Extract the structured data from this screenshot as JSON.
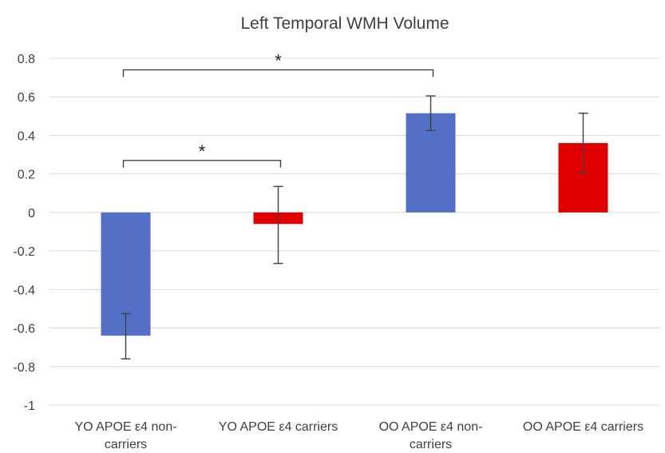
{
  "chart_data": {
    "type": "bar",
    "title": "Left Temporal WMH Volume",
    "xlabel": "",
    "ylabel": "",
    "ylim": [
      -1,
      0.8
    ],
    "yticks": [
      0.8,
      0.6,
      0.4,
      0.2,
      0,
      -0.2,
      -0.4,
      -0.6,
      -0.8,
      -1
    ],
    "ytick_labels": [
      "0.8",
      "0.6",
      "0.4",
      "0.2",
      "0",
      "-0.2",
      "-0.4",
      "-0.6",
      "-0.8",
      "-1"
    ],
    "grid": true,
    "categories": [
      [
        "YO APOE ε4 non-",
        "carriers"
      ],
      [
        "YO APOE ε4 carriers"
      ],
      [
        "OO APOE ε4 non-",
        "carriers"
      ],
      [
        "OO APOE ε4 carriers"
      ]
    ],
    "values": [
      -0.64,
      -0.06,
      0.515,
      0.36
    ],
    "errors": [
      {
        "low": -0.76,
        "high": -0.525
      },
      {
        "low": -0.265,
        "high": 0.135
      },
      {
        "low": 0.425,
        "high": 0.605
      },
      {
        "low": 0.205,
        "high": 0.515
      }
    ],
    "bar_colors": [
      "#5470c6",
      "#e00000",
      "#5470c6",
      "#e00000"
    ],
    "significance": [
      {
        "from": 0,
        "to": 1,
        "label": "*",
        "y": 0.27
      },
      {
        "from": 0,
        "to": 2,
        "label": "*",
        "y": 0.74
      }
    ]
  }
}
